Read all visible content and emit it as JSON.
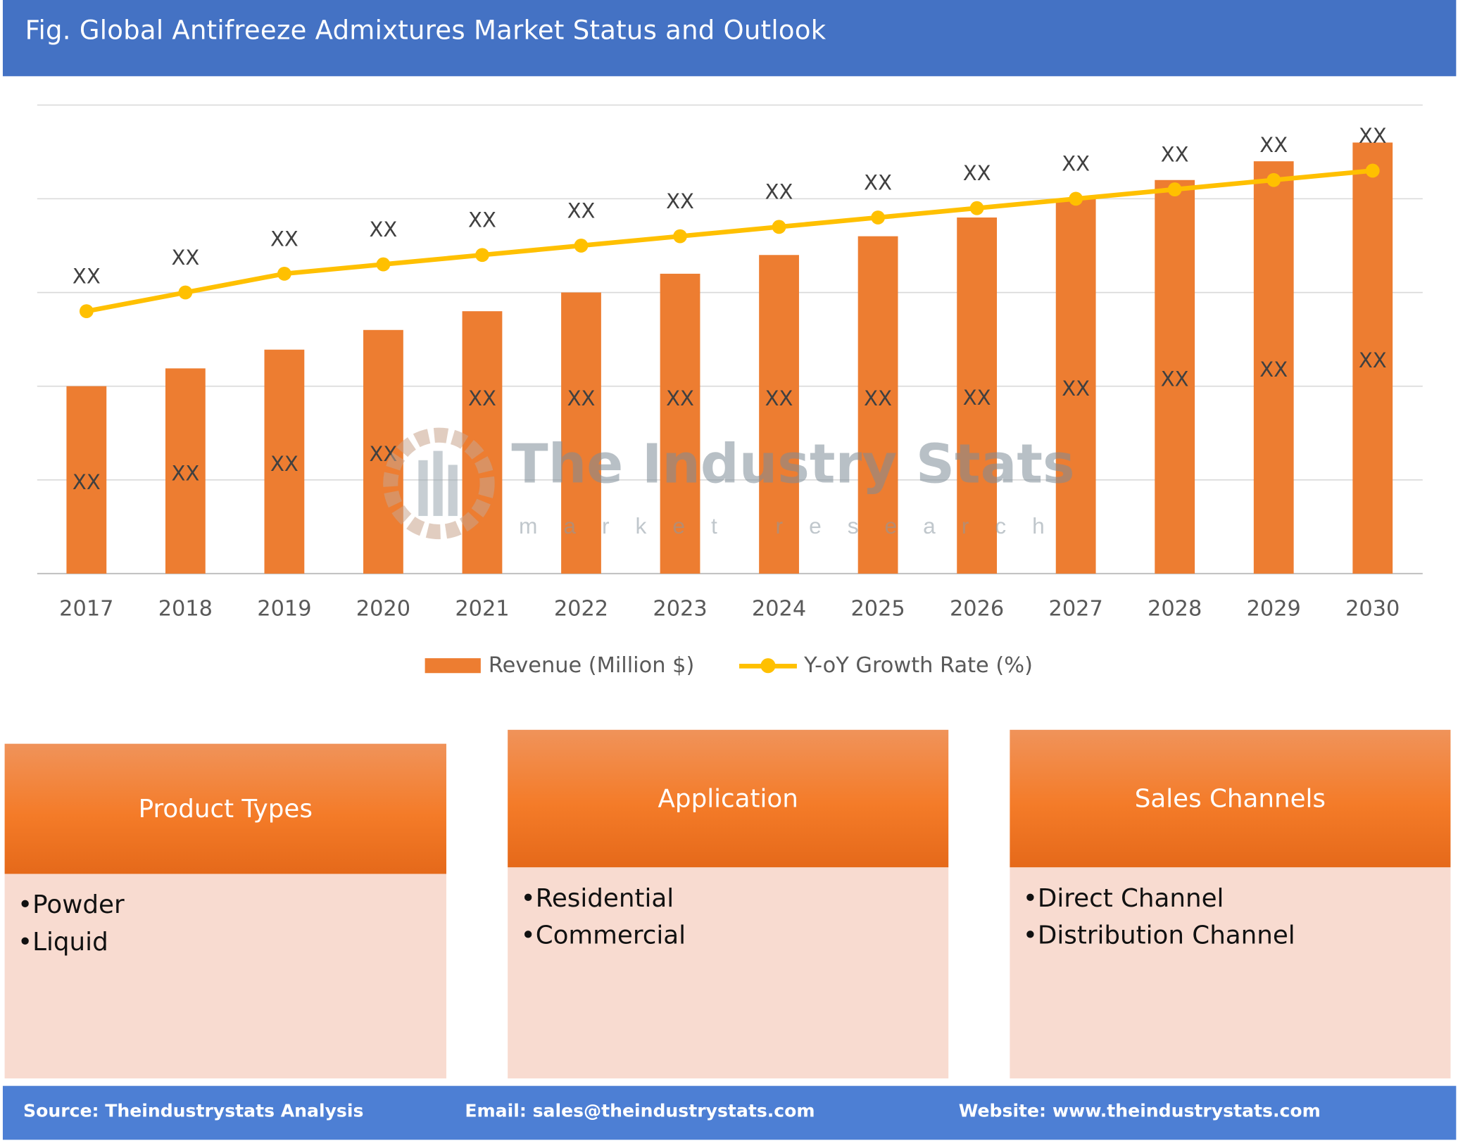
{
  "title": "Fig. Global Antifreeze Admixtures Market Status and Outlook",
  "colors": {
    "header": "#4472c4",
    "bar": "#ed7d31",
    "line": "#ffc000",
    "box_header": "#f47b28",
    "box_body": "#f8dbd0",
    "footer": "#4d7fd4"
  },
  "chart_data": {
    "type": "bar+line",
    "categories": [
      "2017",
      "2018",
      "2019",
      "2020",
      "2021",
      "2022",
      "2023",
      "2024",
      "2025",
      "2026",
      "2027",
      "2028",
      "2029",
      "2030"
    ],
    "series": [
      {
        "name": "Revenue (Million $)",
        "type": "bar",
        "values": [
          2.0,
          2.19,
          2.39,
          2.6,
          2.8,
          3.0,
          3.2,
          3.4,
          3.6,
          3.8,
          4.0,
          4.2,
          4.4,
          4.6
        ],
        "data_labels": [
          "XX",
          "XX",
          "XX",
          "XX",
          "XX",
          "XX",
          "XX",
          "XX",
          "XX",
          "XX",
          "XX",
          "XX",
          "XX",
          "XX"
        ]
      },
      {
        "name": "Y-oY Growth Rate (%)",
        "type": "line",
        "values": [
          2.8,
          3.0,
          3.2,
          3.3,
          3.4,
          3.5,
          3.6,
          3.7,
          3.8,
          3.9,
          4.0,
          4.1,
          4.2,
          4.3
        ],
        "data_labels": [
          "XX",
          "XX",
          "XX",
          "XX",
          "XX",
          "XX",
          "XX",
          "XX",
          "XX",
          "XX",
          "XX",
          "XX",
          "XX",
          "XX"
        ]
      }
    ],
    "ylim": [
      0,
      5
    ],
    "grid": true,
    "y_tick_labels_shown": false,
    "legend": "bottom"
  },
  "watermark": {
    "name": "The Industry Stats",
    "tagline": "market research"
  },
  "boxes": [
    {
      "title": "Product Types",
      "items": [
        "Powder",
        "Liquid"
      ]
    },
    {
      "title": "Application",
      "items": [
        "Residential",
        "Commercial"
      ]
    },
    {
      "title": "Sales Channels",
      "items": [
        "Direct Channel",
        "Distribution Channel"
      ]
    }
  ],
  "footer": {
    "source": "Source: Theindustrystats Analysis",
    "email": "Email: sales@theindustrystats.com",
    "website": "Website: www.theindustrystats.com"
  }
}
